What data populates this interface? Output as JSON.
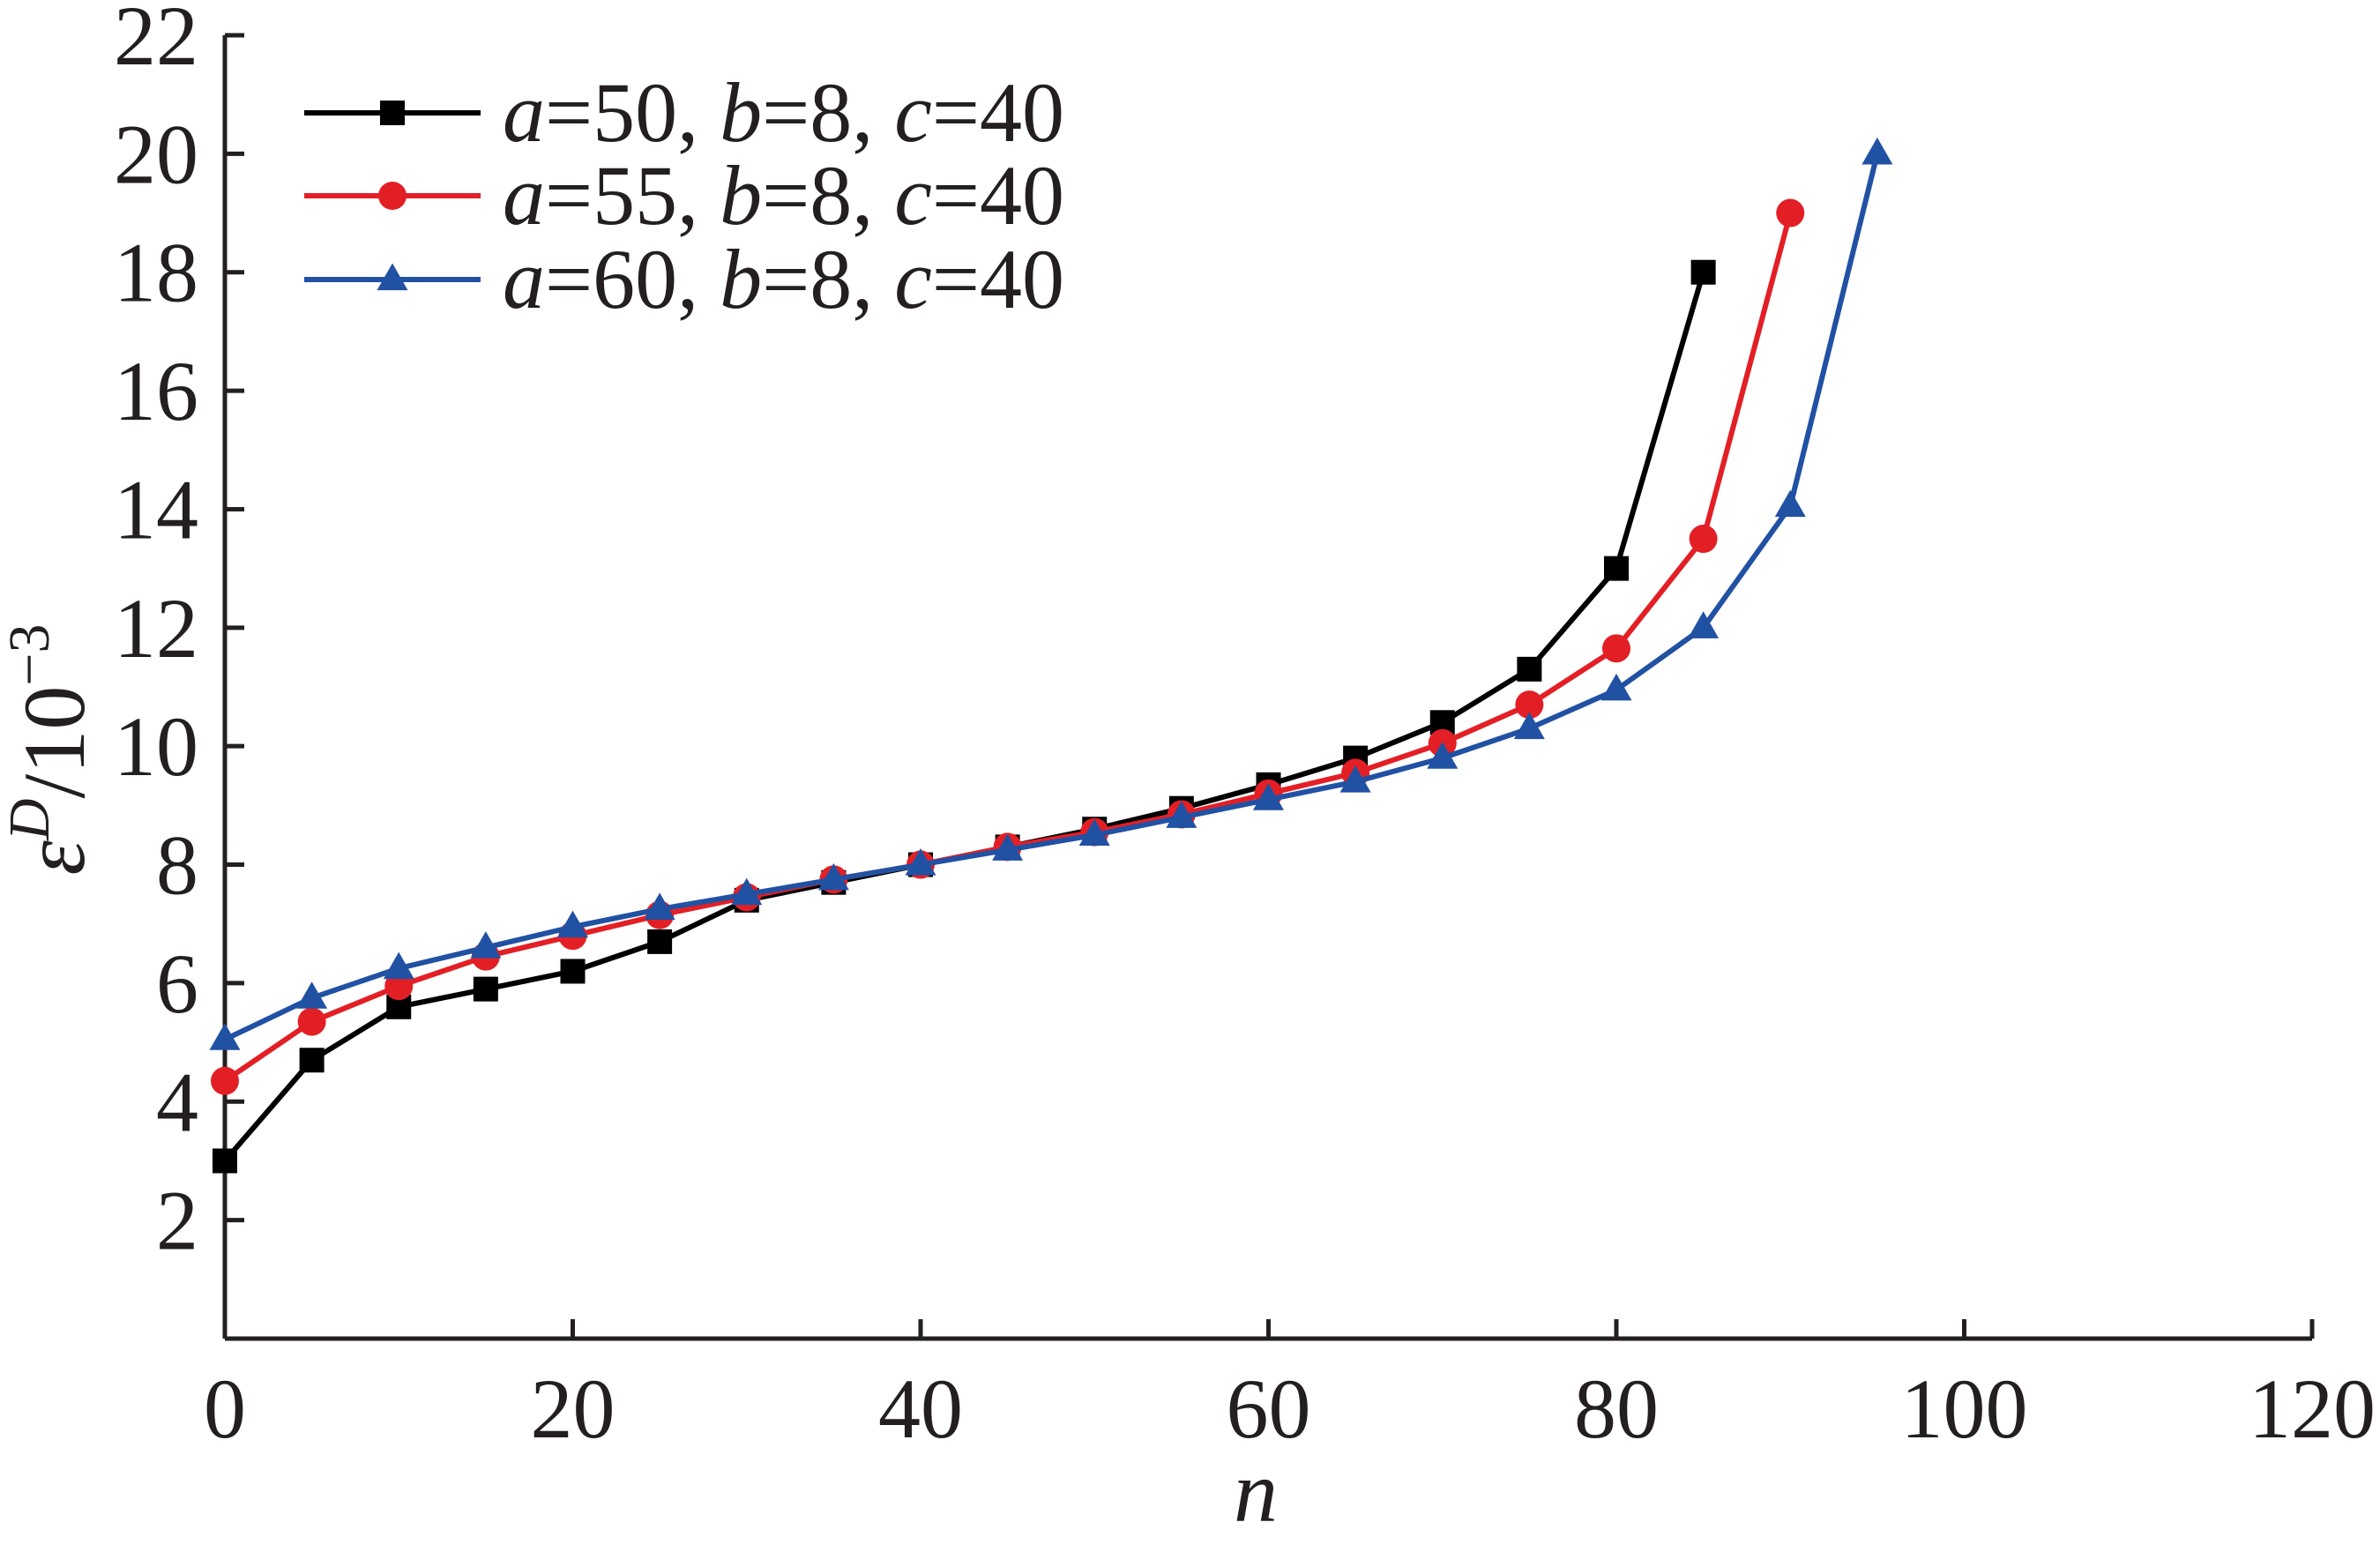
{
  "chart_data": {
    "type": "line",
    "xlabel": "n",
    "ylabel": {
      "symbol": "ε",
      "superscript": "D",
      "unit": "/10",
      "unit_exponent": "−3"
    },
    "xlim": [
      0,
      120
    ],
    "ylim": [
      0,
      22
    ],
    "x_ticks": [
      "0",
      "20",
      "40",
      "60",
      "80",
      "100",
      "120"
    ],
    "y_ticks": [
      "2",
      "4",
      "6",
      "8",
      "10",
      "12",
      "14",
      "16",
      "18",
      "20",
      "22"
    ],
    "grid": false,
    "legend_position": "top-left",
    "series": [
      {
        "name": "a=50, b=8, c=40",
        "legend": {
          "a": "50",
          "b": "8",
          "c": "40"
        },
        "color": "#000000",
        "marker": "square",
        "x": [
          0,
          5,
          10,
          15,
          20,
          25,
          30,
          35,
          40,
          45,
          50,
          55,
          60,
          65,
          70,
          75,
          80,
          85
        ],
        "y": [
          3.0,
          4.7,
          5.6,
          5.9,
          6.2,
          6.7,
          7.4,
          7.7,
          8.0,
          8.3,
          8.6,
          8.95,
          9.35,
          9.8,
          10.4,
          11.3,
          13.0,
          18.0
        ]
      },
      {
        "name": "a=55, b=8, c=40",
        "legend": {
          "a": "55",
          "b": "8",
          "c": "40"
        },
        "color": "#e31f26",
        "marker": "circle",
        "x": [
          0,
          5,
          10,
          15,
          20,
          25,
          30,
          35,
          40,
          45,
          50,
          55,
          60,
          65,
          70,
          75,
          80,
          85,
          90
        ],
        "y": [
          4.35,
          5.35,
          5.95,
          6.45,
          6.8,
          7.15,
          7.45,
          7.75,
          8.0,
          8.3,
          8.55,
          8.85,
          9.2,
          9.55,
          10.05,
          10.7,
          11.65,
          13.5,
          19.0
        ]
      },
      {
        "name": "a=60, b=8, c=40",
        "legend": {
          "a": "60",
          "b": "8",
          "c": "40"
        },
        "color": "#2151a3",
        "marker": "triangle",
        "x": [
          0,
          5,
          10,
          15,
          20,
          25,
          30,
          35,
          40,
          45,
          50,
          55,
          60,
          65,
          70,
          75,
          80,
          85,
          90,
          95
        ],
        "y": [
          5.05,
          5.75,
          6.25,
          6.6,
          6.95,
          7.25,
          7.5,
          7.75,
          8.0,
          8.25,
          8.5,
          8.8,
          9.1,
          9.4,
          9.8,
          10.3,
          10.95,
          12.0,
          14.05,
          20.0
        ]
      }
    ]
  }
}
